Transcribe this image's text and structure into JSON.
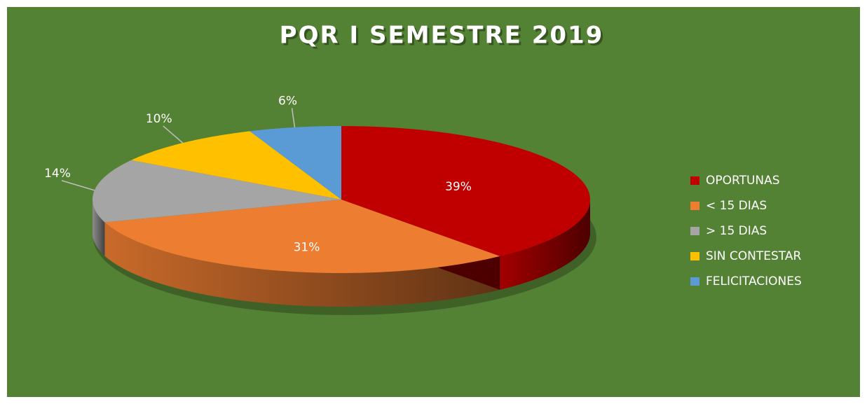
{
  "chart_data": {
    "type": "pie",
    "title": "PQR I SEMESTRE 2019",
    "categories": [
      "OPORTUNAS",
      "< 15 DIAS",
      "> 15 DIAS",
      "SIN CONTESTAR",
      "FELICITACIONES"
    ],
    "values": [
      39,
      31,
      14,
      10,
      6
    ],
    "value_labels": [
      "39%",
      "31%",
      "14%",
      "10%",
      "6%"
    ],
    "colors": [
      "#c00000",
      "#ed7d31",
      "#a5a5a5",
      "#ffc000",
      "#5b9bd5"
    ],
    "legend": "right"
  }
}
